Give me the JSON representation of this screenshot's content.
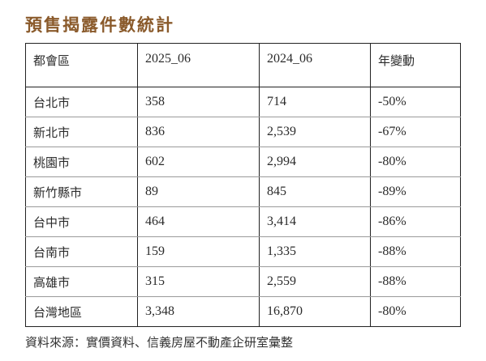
{
  "title": "預售揭露件數統計",
  "table": {
    "headers": [
      "都會區",
      "2025_06",
      "2024_06",
      "年變動"
    ],
    "rows": [
      [
        "台北市",
        "358",
        "714",
        "-50%"
      ],
      [
        "新北市",
        "836",
        "2,539",
        "-67%"
      ],
      [
        "桃園市",
        "602",
        "2,994",
        "-80%"
      ],
      [
        "新竹縣市",
        "89",
        "845",
        "-89%"
      ],
      [
        "台中市",
        "464",
        "3,414",
        "-86%"
      ],
      [
        "台南市",
        "159",
        "1,335",
        "-88%"
      ],
      [
        "高雄市",
        "315",
        "2,559",
        "-88%"
      ],
      [
        "台灣地區",
        "3,348",
        "16,870",
        "-80%"
      ]
    ]
  },
  "source": "資料來源：實價資料、信義房屋不動產企研室彙整",
  "colors": {
    "title": "#8a5a2b",
    "text": "#2b2b2b",
    "border": "#222222",
    "row_divider": "#9a9a9a"
  }
}
